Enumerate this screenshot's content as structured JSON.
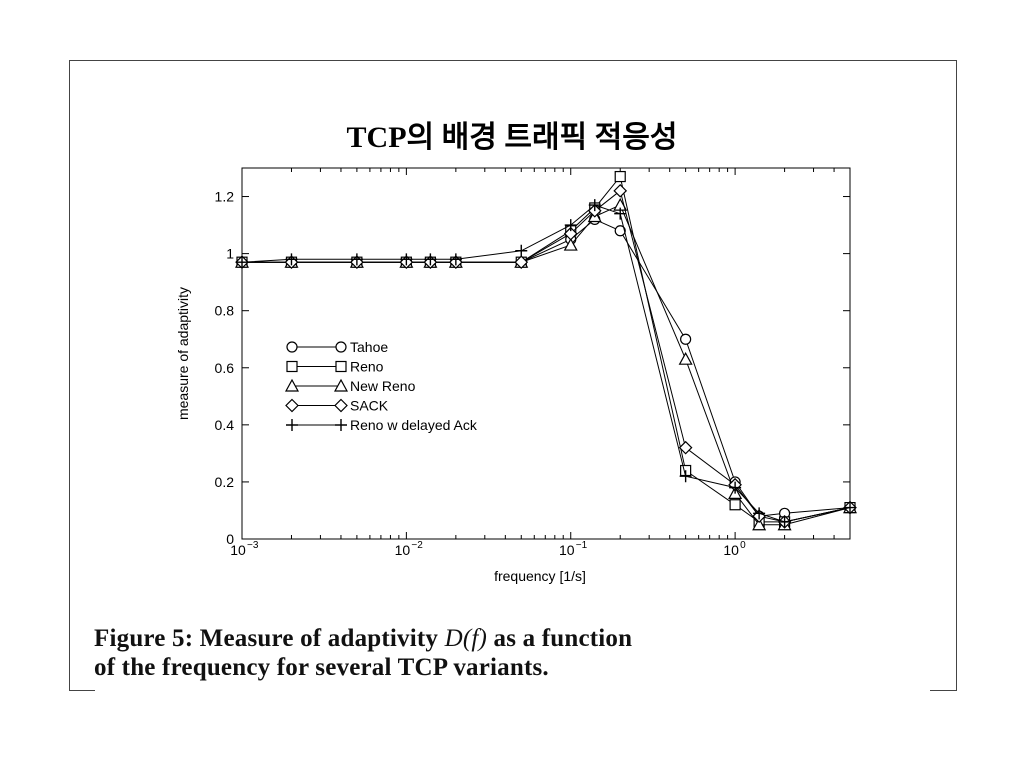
{
  "slide": {
    "title": "TCP의 배경 트래픽 적응성",
    "caption_line1_pre": "Figure 5: Measure of adaptivity",
    "caption_math": "D(f)",
    "caption_line1_post": "as a function",
    "caption_line2": "of the frequency for several TCP variants."
  },
  "chart_data": {
    "type": "line",
    "xlabel": "frequency [1/s]",
    "ylabel": "measure of adaptivity",
    "xscale": "log",
    "xlim": [
      0.001,
      5
    ],
    "ylim": [
      0,
      1.3
    ],
    "x_ticks": [
      {
        "value": 0.001,
        "label": "10",
        "exp": "−3"
      },
      {
        "value": 0.01,
        "label": "10",
        "exp": "−2"
      },
      {
        "value": 0.1,
        "label": "10",
        "exp": "−1"
      },
      {
        "value": 1,
        "label": "10",
        "exp": "0"
      }
    ],
    "y_ticks": [
      {
        "value": 0,
        "label": "0"
      },
      {
        "value": 0.2,
        "label": "0.2"
      },
      {
        "value": 0.4,
        "label": "0.4"
      },
      {
        "value": 0.6,
        "label": "0.6"
      },
      {
        "value": 0.8,
        "label": "0.8"
      },
      {
        "value": 1,
        "label": "1"
      },
      {
        "value": 1.2,
        "label": "1.2"
      }
    ],
    "grid": false,
    "legend_position": "center-left",
    "series": [
      {
        "name": "Tahoe",
        "marker": "circle",
        "x": [
          0.001,
          0.002,
          0.005,
          0.01,
          0.014,
          0.02,
          0.05,
          0.1,
          0.14,
          0.2,
          0.5,
          1,
          1.4,
          2,
          5
        ],
        "y": [
          0.97,
          0.97,
          0.97,
          0.97,
          0.97,
          0.97,
          0.97,
          1.05,
          1.12,
          1.08,
          0.7,
          0.2,
          0.08,
          0.09,
          0.11
        ]
      },
      {
        "name": "Reno",
        "marker": "square",
        "x": [
          0.001,
          0.002,
          0.005,
          0.01,
          0.014,
          0.02,
          0.05,
          0.1,
          0.14,
          0.2,
          0.5,
          1,
          1.4,
          2,
          5
        ],
        "y": [
          0.97,
          0.97,
          0.97,
          0.97,
          0.97,
          0.97,
          0.97,
          1.08,
          1.16,
          1.27,
          0.24,
          0.12,
          0.06,
          0.06,
          0.11
        ]
      },
      {
        "name": "New Reno",
        "marker": "triangle",
        "x": [
          0.001,
          0.002,
          0.005,
          0.01,
          0.014,
          0.02,
          0.05,
          0.1,
          0.14,
          0.2,
          0.5,
          1,
          1.4,
          2,
          5
        ],
        "y": [
          0.97,
          0.97,
          0.97,
          0.97,
          0.97,
          0.97,
          0.97,
          1.03,
          1.13,
          1.17,
          0.63,
          0.16,
          0.05,
          0.05,
          0.11
        ]
      },
      {
        "name": "SACK",
        "marker": "diamond",
        "x": [
          0.001,
          0.002,
          0.005,
          0.01,
          0.014,
          0.02,
          0.05,
          0.1,
          0.14,
          0.2,
          0.5,
          1,
          1.4,
          2,
          5
        ],
        "y": [
          0.97,
          0.97,
          0.97,
          0.97,
          0.97,
          0.97,
          0.97,
          1.07,
          1.15,
          1.22,
          0.32,
          0.19,
          0.08,
          0.06,
          0.11
        ]
      },
      {
        "name": "Reno w delayed Ack",
        "marker": "plus",
        "x": [
          0.001,
          0.002,
          0.005,
          0.01,
          0.014,
          0.02,
          0.05,
          0.1,
          0.14,
          0.2,
          0.5,
          1,
          1.4,
          2,
          5
        ],
        "y": [
          0.97,
          0.98,
          0.98,
          0.98,
          0.98,
          0.98,
          1.01,
          1.1,
          1.17,
          1.14,
          0.22,
          0.18,
          0.09,
          0.06,
          0.11
        ]
      }
    ]
  }
}
